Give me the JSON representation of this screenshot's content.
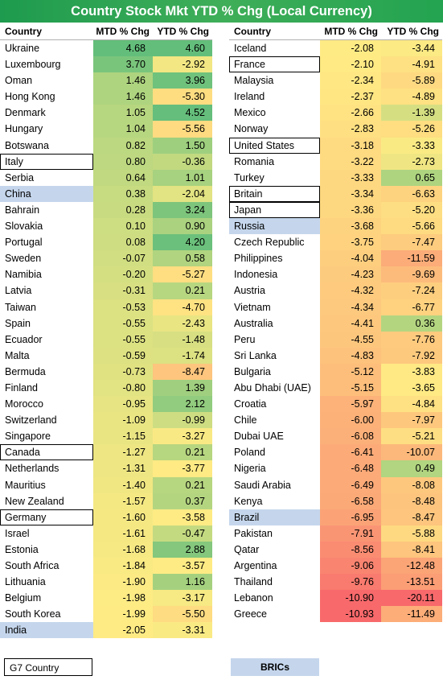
{
  "title": "Country Stock Mkt YTD % Chg (Local Currency)",
  "chart_data": {
    "type": "table",
    "columns": [
      "Country",
      "MTD % Chg",
      "YTD % Chg"
    ],
    "color_scale": {
      "low": "#f8696b",
      "mid": "#ffeb84",
      "high": "#63be7b"
    },
    "tables": [
      {
        "rows": [
          {
            "country": "Ukraine",
            "mtd": 4.68,
            "ytd": 4.6,
            "group": ""
          },
          {
            "country": "Luxembourg",
            "mtd": 3.7,
            "ytd": -2.92,
            "group": ""
          },
          {
            "country": "Oman",
            "mtd": 1.46,
            "ytd": 3.96,
            "group": ""
          },
          {
            "country": "Hong Kong",
            "mtd": 1.46,
            "ytd": -5.3,
            "group": ""
          },
          {
            "country": "Denmark",
            "mtd": 1.05,
            "ytd": 4.52,
            "group": ""
          },
          {
            "country": "Hungary",
            "mtd": 1.04,
            "ytd": -5.56,
            "group": ""
          },
          {
            "country": "Botswana",
            "mtd": 0.82,
            "ytd": 1.5,
            "group": ""
          },
          {
            "country": "Italy",
            "mtd": 0.8,
            "ytd": -0.36,
            "group": "g7"
          },
          {
            "country": "Serbia",
            "mtd": 0.64,
            "ytd": 1.01,
            "group": ""
          },
          {
            "country": "China",
            "mtd": 0.38,
            "ytd": -2.04,
            "group": "bric"
          },
          {
            "country": "Bahrain",
            "mtd": 0.28,
            "ytd": 3.24,
            "group": ""
          },
          {
            "country": "Slovakia",
            "mtd": 0.1,
            "ytd": 0.9,
            "group": ""
          },
          {
            "country": "Portugal",
            "mtd": 0.08,
            "ytd": 4.2,
            "group": ""
          },
          {
            "country": "Sweden",
            "mtd": -0.07,
            "ytd": 0.58,
            "group": ""
          },
          {
            "country": "Namibia",
            "mtd": -0.2,
            "ytd": -5.27,
            "group": ""
          },
          {
            "country": "Latvia",
            "mtd": -0.31,
            "ytd": 0.21,
            "group": ""
          },
          {
            "country": "Taiwan",
            "mtd": -0.53,
            "ytd": -4.7,
            "group": ""
          },
          {
            "country": "Spain",
            "mtd": -0.55,
            "ytd": -2.43,
            "group": ""
          },
          {
            "country": "Ecuador",
            "mtd": -0.55,
            "ytd": -1.48,
            "group": ""
          },
          {
            "country": "Malta",
            "mtd": -0.59,
            "ytd": -1.74,
            "group": ""
          },
          {
            "country": "Bermuda",
            "mtd": -0.73,
            "ytd": -8.47,
            "group": ""
          },
          {
            "country": "Finland",
            "mtd": -0.8,
            "ytd": 1.39,
            "group": ""
          },
          {
            "country": "Morocco",
            "mtd": -0.95,
            "ytd": 2.12,
            "group": ""
          },
          {
            "country": "Switzerland",
            "mtd": -1.09,
            "ytd": -0.99,
            "group": ""
          },
          {
            "country": "Singapore",
            "mtd": -1.15,
            "ytd": -3.27,
            "group": ""
          },
          {
            "country": "Canada",
            "mtd": -1.27,
            "ytd": 0.21,
            "group": "g7"
          },
          {
            "country": "Netherlands",
            "mtd": -1.31,
            "ytd": -3.77,
            "group": ""
          },
          {
            "country": "Mauritius",
            "mtd": -1.4,
            "ytd": 0.21,
            "group": ""
          },
          {
            "country": "New Zealand",
            "mtd": -1.57,
            "ytd": 0.37,
            "group": ""
          },
          {
            "country": "Germany",
            "mtd": -1.6,
            "ytd": -3.58,
            "group": "g7"
          },
          {
            "country": "Israel",
            "mtd": -1.61,
            "ytd": -0.47,
            "group": ""
          },
          {
            "country": "Estonia",
            "mtd": -1.68,
            "ytd": 2.88,
            "group": ""
          },
          {
            "country": "South Africa",
            "mtd": -1.84,
            "ytd": -3.57,
            "group": ""
          },
          {
            "country": "Lithuania",
            "mtd": -1.9,
            "ytd": 1.16,
            "group": ""
          },
          {
            "country": "Belgium",
            "mtd": -1.98,
            "ytd": -3.17,
            "group": ""
          },
          {
            "country": "South Korea",
            "mtd": -1.99,
            "ytd": -5.5,
            "group": ""
          },
          {
            "country": "India",
            "mtd": -2.05,
            "ytd": -3.31,
            "group": "bric"
          }
        ]
      },
      {
        "rows": [
          {
            "country": "Iceland",
            "mtd": -2.08,
            "ytd": -3.44,
            "group": ""
          },
          {
            "country": "France",
            "mtd": -2.1,
            "ytd": -4.91,
            "group": "g7"
          },
          {
            "country": "Malaysia",
            "mtd": -2.34,
            "ytd": -5.89,
            "group": ""
          },
          {
            "country": "Ireland",
            "mtd": -2.37,
            "ytd": -4.89,
            "group": ""
          },
          {
            "country": "Mexico",
            "mtd": -2.66,
            "ytd": -1.39,
            "group": ""
          },
          {
            "country": "Norway",
            "mtd": -2.83,
            "ytd": -5.26,
            "group": ""
          },
          {
            "country": "United States",
            "mtd": -3.18,
            "ytd": -3.33,
            "group": "g7"
          },
          {
            "country": "Romania",
            "mtd": -3.22,
            "ytd": -2.73,
            "group": ""
          },
          {
            "country": "Turkey",
            "mtd": -3.33,
            "ytd": 0.65,
            "group": ""
          },
          {
            "country": "Britain",
            "mtd": -3.34,
            "ytd": -6.63,
            "group": "g7"
          },
          {
            "country": "Japan",
            "mtd": -3.36,
            "ytd": -5.2,
            "group": "g7"
          },
          {
            "country": "Russia",
            "mtd": -3.68,
            "ytd": -5.66,
            "group": "bric"
          },
          {
            "country": "Czech Republic",
            "mtd": -3.75,
            "ytd": -7.47,
            "group": ""
          },
          {
            "country": "Philippines",
            "mtd": -4.04,
            "ytd": -11.59,
            "group": ""
          },
          {
            "country": "Indonesia",
            "mtd": -4.23,
            "ytd": -9.69,
            "group": ""
          },
          {
            "country": "Austria",
            "mtd": -4.32,
            "ytd": -7.24,
            "group": ""
          },
          {
            "country": "Vietnam",
            "mtd": -4.34,
            "ytd": -6.77,
            "group": ""
          },
          {
            "country": "Australia",
            "mtd": -4.41,
            "ytd": 0.36,
            "group": ""
          },
          {
            "country": "Peru",
            "mtd": -4.55,
            "ytd": -7.76,
            "group": ""
          },
          {
            "country": "Sri Lanka",
            "mtd": -4.83,
            "ytd": -7.92,
            "group": ""
          },
          {
            "country": "Bulgaria",
            "mtd": -5.12,
            "ytd": -3.83,
            "group": ""
          },
          {
            "country": "Abu Dhabi (UAE)",
            "mtd": -5.15,
            "ytd": -3.65,
            "group": ""
          },
          {
            "country": "Croatia",
            "mtd": -5.97,
            "ytd": -4.84,
            "group": ""
          },
          {
            "country": "Chile",
            "mtd": -6.0,
            "ytd": -7.97,
            "group": ""
          },
          {
            "country": "Dubai UAE",
            "mtd": -6.08,
            "ytd": -5.21,
            "group": ""
          },
          {
            "country": "Poland",
            "mtd": -6.41,
            "ytd": -10.07,
            "group": ""
          },
          {
            "country": "Nigeria",
            "mtd": -6.48,
            "ytd": 0.49,
            "group": ""
          },
          {
            "country": "Saudi Arabia",
            "mtd": -6.49,
            "ytd": -8.08,
            "group": ""
          },
          {
            "country": "Kenya",
            "mtd": -6.58,
            "ytd": -8.48,
            "group": ""
          },
          {
            "country": "Brazil",
            "mtd": -6.95,
            "ytd": -8.47,
            "group": "bric"
          },
          {
            "country": "Pakistan",
            "mtd": -7.91,
            "ytd": -5.88,
            "group": ""
          },
          {
            "country": "Qatar",
            "mtd": -8.56,
            "ytd": -8.41,
            "group": ""
          },
          {
            "country": "Argentina",
            "mtd": -9.06,
            "ytd": -12.48,
            "group": ""
          },
          {
            "country": "Thailand",
            "mtd": -9.76,
            "ytd": -13.51,
            "group": ""
          },
          {
            "country": "Lebanon",
            "mtd": -10.9,
            "ytd": -20.11,
            "group": ""
          },
          {
            "country": "Greece",
            "mtd": -10.93,
            "ytd": -11.49,
            "group": ""
          }
        ]
      }
    ]
  },
  "legend": {
    "g7": "G7 Country",
    "bric": "BRICs"
  }
}
